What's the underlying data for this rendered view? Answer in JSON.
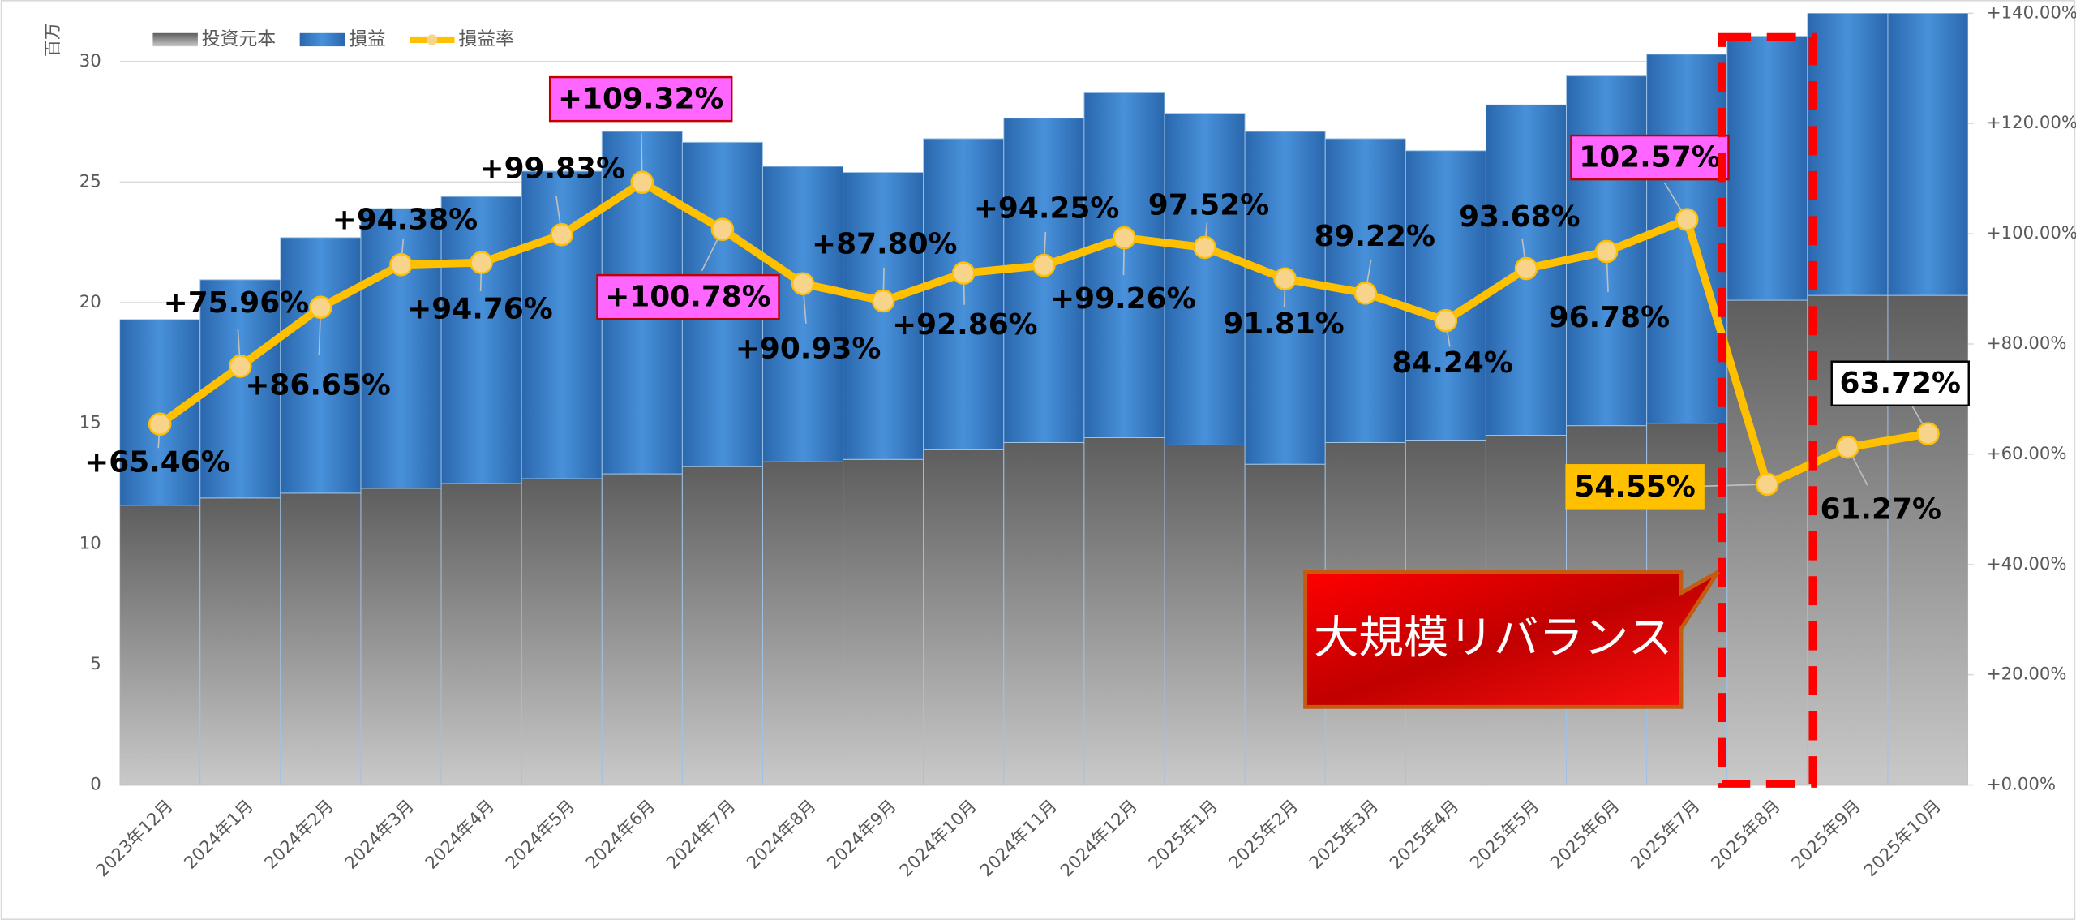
{
  "chart_data": {
    "type": "bar",
    "stacked": true,
    "y_unit_label": "百万",
    "categories": [
      "2023年12月",
      "2024年1月",
      "2024年2月",
      "2024年3月",
      "2024年4月",
      "2024年5月",
      "2024年6月",
      "2024年7月",
      "2024年8月",
      "2024年9月",
      "2024年10月",
      "2024年11月",
      "2024年12月",
      "2025年1月",
      "2025年2月",
      "2025年3月",
      "2025年4月",
      "2025年5月",
      "2025年6月",
      "2025年7月",
      "2025年8月",
      "2025年9月",
      "2025年10月"
    ],
    "series": [
      {
        "name": "投資元本",
        "color": "#808080",
        "values": [
          11.6,
          11.9,
          12.1,
          12.3,
          12.5,
          12.7,
          12.9,
          13.2,
          13.4,
          13.5,
          13.9,
          14.2,
          14.4,
          14.1,
          13.3,
          14.2,
          14.3,
          14.5,
          14.9,
          15.0,
          20.1,
          20.3,
          20.3
        ]
      },
      {
        "name": "損益",
        "color": "#3a80c9",
        "values": [
          7.7,
          9.05,
          10.6,
          11.6,
          11.9,
          12.75,
          14.2,
          13.45,
          12.25,
          11.9,
          12.9,
          13.45,
          14.3,
          13.75,
          13.8,
          12.6,
          12.0,
          13.7,
          14.5,
          15.3,
          10.95,
          12.4,
          12.9
        ]
      },
      {
        "name": "損益率",
        "color": "#ffc000",
        "axis": "y2",
        "values": [
          65.46,
          75.96,
          86.65,
          94.38,
          94.76,
          99.83,
          109.32,
          100.78,
          90.93,
          87.8,
          92.86,
          94.25,
          99.26,
          97.52,
          91.81,
          89.22,
          84.24,
          93.68,
          96.78,
          102.57,
          54.55,
          61.27,
          63.72
        ],
        "value_labels": [
          "+65.46%",
          "+75.96%",
          "+86.65%",
          "+94.38%",
          "+94.76%",
          "+99.83%",
          "+109.32%",
          "+100.78%",
          "+90.93%",
          "+87.80%",
          "+92.86%",
          "+94.25%",
          "+99.26%",
          "97.52%",
          "91.81%",
          "89.22%",
          "84.24%",
          "93.68%",
          "96.78%",
          "102.57%",
          "54.55%",
          "61.27%",
          "63.72%"
        ]
      }
    ],
    "ylim": [
      0,
      32
    ],
    "yticks": [
      0,
      5,
      10,
      15,
      20,
      25,
      30
    ],
    "y2lim": [
      0,
      140
    ],
    "y2ticks": [
      {
        "value": 0,
        "label": "+0.00%"
      },
      {
        "value": 20,
        "label": "+20.00%"
      },
      {
        "value": 40,
        "label": "+40.00%"
      },
      {
        "value": 60,
        "label": "+60.00%"
      },
      {
        "value": 80,
        "label": "+80.00%"
      },
      {
        "value": 100,
        "label": "+100.00%"
      },
      {
        "value": 120,
        "label": "+120.00%"
      },
      {
        "value": 140,
        "label": "+140.00%"
      }
    ],
    "grid": true,
    "legend": "top-left",
    "annotation": "大規模リバランス"
  }
}
